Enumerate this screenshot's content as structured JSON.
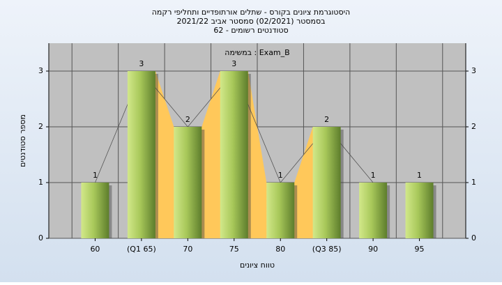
{
  "chart_data": {
    "type": "bar",
    "title": "היסטוגרמת ציונים בקורס - שתלים אורתופדיים ותחליפי רקמה",
    "subtitle": "בסמסטר  (02/2021)  סמסטר אביב 2021/22",
    "caption": "סטודנטים רשומים - 62",
    "annotation": "במשימה : Exam_B",
    "x_label": "טווח ציונים",
    "y_label": "מספר סטודנטים",
    "categories": [
      "60",
      "(Q1 65)",
      "70",
      "75",
      "80",
      "(Q3 85)",
      "90",
      "95"
    ],
    "values": [
      1,
      3,
      2,
      3,
      1,
      2,
      1,
      1
    ],
    "color": "#8fb043",
    "ylim": [
      0,
      3.5
    ],
    "yticks": [
      0,
      1,
      2,
      3
    ],
    "grid": true
  }
}
